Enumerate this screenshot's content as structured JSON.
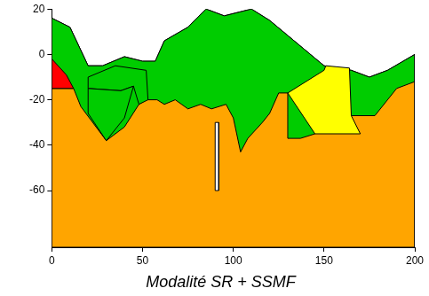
{
  "chart_data": {
    "type": "polygon",
    "title": "Modalité SR + SSMF",
    "xlim": [
      0,
      200
    ],
    "xticks": [
      0,
      50,
      100,
      150,
      200
    ],
    "ylim": [
      -85,
      20
    ],
    "yticks": [
      -60,
      -40,
      -20,
      0,
      20
    ],
    "grid": false,
    "series": [
      {
        "color": "#ffa500",
        "x": [
          0,
          10,
          20,
          28,
          40,
          50,
          57,
          62,
          75,
          85,
          95,
          110,
          120,
          135,
          150,
          165,
          175,
          185,
          200,
          200,
          0,
          0
        ],
        "values": [
          16,
          12,
          -5,
          -5,
          -1,
          -3,
          -3,
          6,
          12,
          20,
          17,
          20,
          15,
          5,
          -5,
          -7,
          -10,
          -7,
          0,
          -85,
          -85,
          16
        ]
      },
      {
        "color": "#00cc00",
        "x": [
          0,
          10,
          20,
          28,
          40,
          50,
          57,
          62,
          75,
          85,
          95,
          110,
          120,
          135,
          150,
          165,
          175,
          185,
          200,
          200,
          190,
          178,
          165,
          145,
          137,
          130,
          130,
          125,
          120,
          116,
          108,
          104,
          100,
          96,
          88,
          82,
          75,
          68,
          62,
          58,
          52,
          48,
          40,
          30,
          16,
          12,
          0,
          0
        ],
        "values": [
          16,
          12,
          -5,
          -5,
          -1,
          -3,
          -3,
          6,
          12,
          20,
          17,
          20,
          15,
          5,
          -5,
          -7,
          -10,
          -7,
          0,
          -12,
          -15,
          -27,
          -27,
          -35,
          -37,
          -37,
          -17,
          -17,
          -26,
          -30,
          -37,
          -43,
          -28,
          -22,
          -24,
          -22,
          -24,
          -20,
          -22,
          -20,
          -20,
          -22,
          -32,
          -38,
          -23,
          -15,
          -15,
          16
        ]
      },
      {
        "color": "#00cc00",
        "x": [
          20,
          35,
          52,
          53,
          48,
          45,
          38,
          20,
          20
        ],
        "values": [
          -10,
          -5,
          -7,
          -20,
          -22,
          -14,
          -16,
          -15,
          -10
        ]
      },
      {
        "color": "#00cc00",
        "x": [
          20,
          38,
          45,
          40,
          30,
          20,
          20
        ],
        "values": [
          -15,
          -16,
          -14,
          -28,
          -38,
          -26,
          -15
        ]
      },
      {
        "color": "#ffff00",
        "x": [
          130,
          150,
          151,
          164,
          165,
          170,
          145,
          130
        ],
        "values": [
          -17,
          -7,
          -5,
          -6,
          -27,
          -35,
          -35,
          -17
        ]
      },
      {
        "color": "#ff0000",
        "x": [
          0,
          8,
          12,
          0,
          0
        ],
        "values": [
          -2,
          -9,
          -15,
          -15,
          -2
        ]
      },
      {
        "color": "#ffffff",
        "x": [
          90,
          92,
          92,
          90,
          90
        ],
        "values": [
          -30,
          -30,
          -60,
          -60,
          -30
        ]
      }
    ]
  }
}
